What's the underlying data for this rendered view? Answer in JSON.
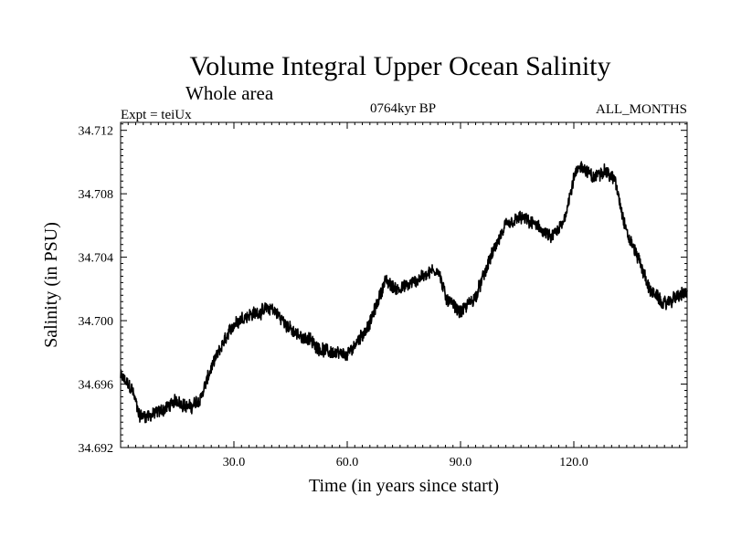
{
  "chart_data": {
    "type": "line",
    "title": "Volume Integral Upper Ocean Salinity",
    "subtitle": "Whole area",
    "experiment_label": "Expt = teiUx",
    "period_label": "0764kyr BP",
    "months_label": "ALL_MONTHS",
    "xlabel": "Time (in years since start)",
    "ylabel": "Salinity (in PSU)",
    "xlim": [
      0,
      150
    ],
    "ylim": [
      34.692,
      34.7125
    ],
    "x_ticks": [
      30,
      60,
      90,
      120
    ],
    "x_tick_labels": [
      "30.0",
      "60.0",
      "90.0",
      "120.0"
    ],
    "y_ticks": [
      34.692,
      34.696,
      34.7,
      34.704,
      34.708,
      34.712
    ],
    "y_tick_labels": [
      "34.692",
      "34.696",
      "34.700",
      "34.704",
      "34.708",
      "34.712"
    ],
    "grid": false,
    "samples_per_year": 12,
    "noise_amplitude": 0.00075,
    "series": [
      {
        "name": "Salinity",
        "color": "#000000",
        "trend": {
          "x": [
            0,
            3,
            5,
            8,
            12,
            15,
            18,
            21,
            24,
            27,
            30,
            33,
            36,
            40,
            43,
            46,
            50,
            53,
            56,
            60,
            62,
            66,
            70,
            73,
            76,
            80,
            84,
            86,
            90,
            94,
            98,
            102,
            106,
            110,
            114,
            117,
            120,
            122,
            125,
            128,
            131,
            134,
            137,
            140,
            144,
            147,
            150
          ],
          "y": [
            34.6965,
            34.6957,
            34.694,
            34.694,
            34.6945,
            34.695,
            34.6945,
            34.695,
            34.697,
            34.6985,
            34.6998,
            34.7003,
            34.7005,
            34.7008,
            34.7,
            34.6992,
            34.6988,
            34.6982,
            34.698,
            34.6978,
            34.6985,
            34.6998,
            34.7025,
            34.702,
            34.7022,
            34.7028,
            34.7033,
            34.7015,
            34.7005,
            34.7015,
            34.704,
            34.706,
            34.7065,
            34.706,
            34.7052,
            34.706,
            34.709,
            34.7098,
            34.709,
            34.7095,
            34.7088,
            34.7055,
            34.704,
            34.702,
            34.701,
            34.7015,
            34.7018
          ]
        }
      }
    ]
  }
}
